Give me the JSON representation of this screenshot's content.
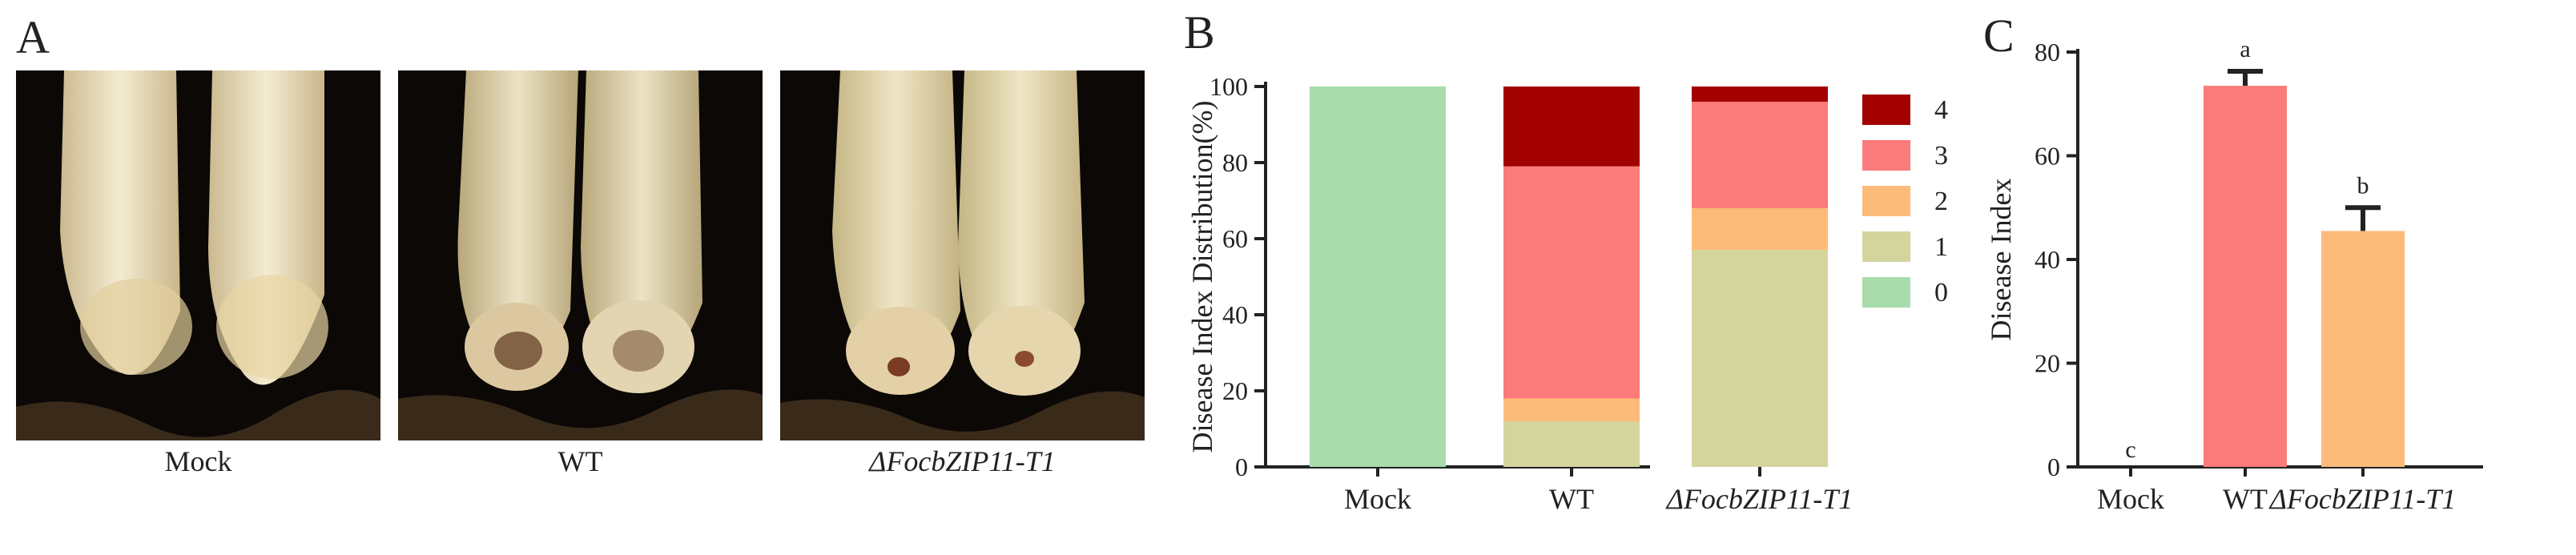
{
  "panel_a": {
    "letter": "A",
    "photos": [
      {
        "label": "Mock"
      },
      {
        "label": "WT"
      },
      {
        "label": "ΔFocbZIP11-T1"
      }
    ]
  },
  "chart_data": [
    {
      "panel": "B",
      "type": "bar",
      "stacked": true,
      "categories": [
        "Mock",
        "WT",
        "ΔFocbZIP11-T1"
      ],
      "ylabel": "Disease Index Distribution(%)",
      "ylim": [
        0,
        100
      ],
      "yticks": [
        0,
        20,
        40,
        60,
        80,
        100
      ],
      "legend_position": "right",
      "series": [
        {
          "name": "0",
          "color": "#a8dcab",
          "values": [
            100,
            0,
            0
          ]
        },
        {
          "name": "1",
          "color": "#d3d59c",
          "values": [
            0,
            12,
            57
          ]
        },
        {
          "name": "2",
          "color": "#fdbb7a",
          "values": [
            0,
            6,
            11
          ]
        },
        {
          "name": "3",
          "color": "#fb7b7b",
          "values": [
            0,
            61,
            28
          ]
        },
        {
          "name": "4",
          "color": "#a30000",
          "values": [
            0,
            21,
            4
          ]
        }
      ]
    },
    {
      "panel": "C",
      "type": "bar",
      "categories": [
        "Mock",
        "WT",
        "ΔFocbZIP11-T1"
      ],
      "values": [
        0,
        73.5,
        45.5
      ],
      "errors": [
        0,
        2.8,
        4.5
      ],
      "significance": [
        "c",
        "a",
        "b"
      ],
      "colors": [
        "#fb7b7b",
        "#fb7b7b",
        "#fdbb7a"
      ],
      "ylabel": "Disease Index",
      "ylim": [
        0,
        80
      ],
      "yticks": [
        0,
        20,
        40,
        60,
        80
      ]
    }
  ]
}
